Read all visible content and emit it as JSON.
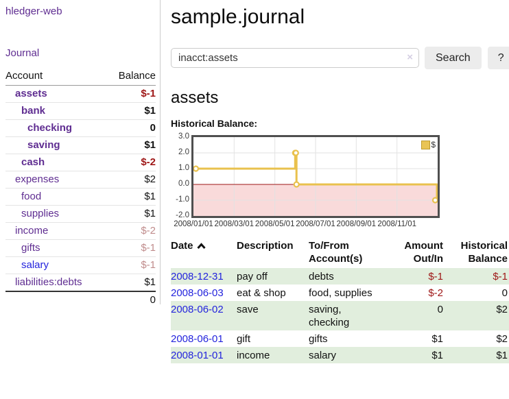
{
  "app": {
    "brand": "hledger-web",
    "nav": {
      "journal": "Journal"
    }
  },
  "sidebar": {
    "header": {
      "account": "Account",
      "balance": "Balance"
    },
    "accounts": [
      {
        "name": "assets",
        "balance": "$-1"
      },
      {
        "name": "bank",
        "balance": "$1"
      },
      {
        "name": "checking",
        "balance": "0"
      },
      {
        "name": "saving",
        "balance": "$1"
      },
      {
        "name": "cash",
        "balance": "$-2"
      },
      {
        "name": "expenses",
        "balance": "$2"
      },
      {
        "name": "food",
        "balance": "$1"
      },
      {
        "name": "supplies",
        "balance": "$1"
      },
      {
        "name": "income",
        "balance": "$-2"
      },
      {
        "name": "gifts",
        "balance": "$-1"
      },
      {
        "name": "salary",
        "balance": "$-1"
      },
      {
        "name": "liabilities:debts",
        "balance": "$1"
      }
    ],
    "total": "0"
  },
  "main": {
    "title": "sample.journal",
    "search": {
      "value": "inacct:assets",
      "button_label": "Search",
      "help_label": "?"
    },
    "heading": "assets",
    "chart_label": "Historical Balance:"
  },
  "icons": {
    "search_clear": "×",
    "date_sort": "chevron-up",
    "legend_swatch": "gold-square"
  },
  "colors": {
    "link_purple": "#5f2d91",
    "link_blue": "#2323dd",
    "negative_strong": "#9e1616",
    "negative_soft": "#c08c8c",
    "row_shade_green": "#e1eedd",
    "series_gold": "#e9c14d"
  },
  "chart_data": {
    "type": "line",
    "step": true,
    "title": "Historical Balance",
    "x": [
      "2008-01-01",
      "2008-06-01",
      "2008-06-02",
      "2008-06-03",
      "2008-12-31"
    ],
    "series": [
      {
        "name": "$",
        "color": "#e9c14d",
        "values": [
          1,
          2,
          2,
          0,
          -1
        ]
      }
    ],
    "x_ticks": [
      "2008/01/01",
      "2008/03/01",
      "2008/05/01",
      "2008/07/01",
      "2008/09/01",
      "2008/11/01"
    ],
    "y_ticks": [
      "3.0",
      "2.0",
      "1.0",
      "0.0",
      "-1.0",
      "-2.0"
    ],
    "ylim": [
      -2,
      3
    ],
    "grid": true,
    "legend_position": "top-right",
    "negative_fill": "#f9dada",
    "zero_line_color": "#9e1616"
  },
  "register": {
    "columns": {
      "date": "Date",
      "description": "Description",
      "accounts": "To/From Account(s)",
      "amount": "Amount Out/In",
      "balance": "Historical Balance"
    },
    "rows": [
      {
        "date": "2008-12-31",
        "description": "pay off",
        "accounts": "debts",
        "amount": "$-1",
        "balance": "$-1"
      },
      {
        "date": "2008-06-03",
        "description": "eat & shop",
        "accounts": "food, supplies",
        "amount": "$-2",
        "balance": "0"
      },
      {
        "date": "2008-06-02",
        "description": "save",
        "accounts": "saving, checking",
        "amount": "0",
        "balance": "$2"
      },
      {
        "date": "2008-06-01",
        "description": "gift",
        "accounts": "gifts",
        "amount": "$1",
        "balance": "$2"
      },
      {
        "date": "2008-01-01",
        "description": "income",
        "accounts": "salary",
        "amount": "$1",
        "balance": "$1"
      }
    ]
  }
}
